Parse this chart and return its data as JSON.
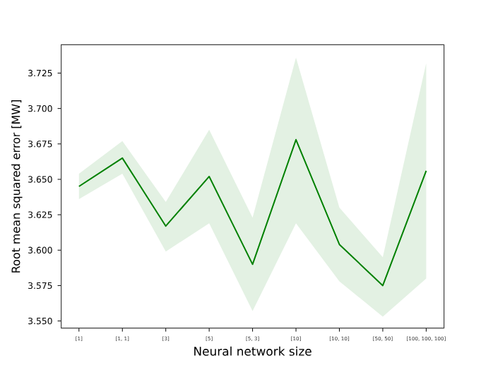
{
  "chart_data": {
    "type": "line",
    "xlabel": "Neural network size",
    "ylabel": "Root mean squared error [MW]",
    "categories": [
      "[1]",
      "[1, 1]",
      "[3]",
      "[5]",
      "[5, 3]",
      "[10]",
      "[10, 10]",
      "[50, 50]",
      "[100, 100, 100]"
    ],
    "series": [
      {
        "color": "#008000",
        "values": [
          3.645,
          3.665,
          3.617,
          3.652,
          3.59,
          3.678,
          3.604,
          3.575,
          3.656
        ],
        "lower": [
          3.636,
          3.654,
          3.599,
          3.619,
          3.557,
          3.619,
          3.578,
          3.553,
          3.58
        ],
        "upper": [
          3.654,
          3.677,
          3.634,
          3.685,
          3.623,
          3.736,
          3.63,
          3.595,
          3.732
        ]
      }
    ],
    "ylim": [
      3.545,
      3.745
    ],
    "yticks": [
      {
        "value": 3.55,
        "label": "3.550"
      },
      3.575,
      {
        "value": 3.6,
        "label": "3.600"
      },
      3.625,
      {
        "value": 3.65,
        "label": "3.650"
      },
      3.675,
      {
        "value": 3.7,
        "label": "3.700"
      },
      3.725
    ],
    "marker": "none",
    "line_style": "solid"
  }
}
